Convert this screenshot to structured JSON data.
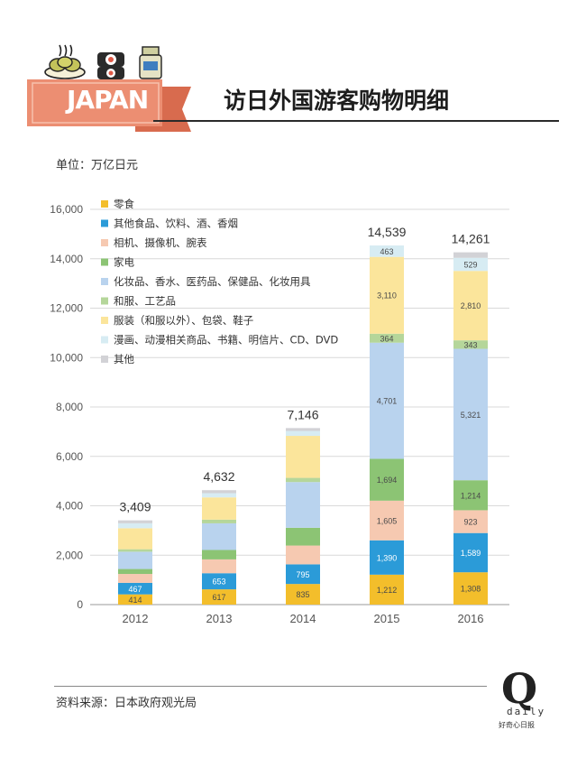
{
  "header": {
    "banner_text": "JAPAN",
    "title": "访日外国游客购物明细"
  },
  "unit_label": "单位：万亿日元",
  "source_label": "资料来源：日本政府观光局",
  "logo": {
    "letter": "Q",
    "word": "daily",
    "tagline": "好奇心日报"
  },
  "colors": {
    "banner": "#ec8e72",
    "grid": "#d9d9d9",
    "axis_text": "#555555"
  },
  "chart_data": {
    "type": "bar",
    "stacked": true,
    "categories": [
      "2012",
      "2013",
      "2014",
      "2015",
      "2016"
    ],
    "ylim": [
      0,
      16000
    ],
    "yticks": [
      "0",
      "2,000",
      "4,000",
      "6,000",
      "8,000",
      "10,000",
      "12,000",
      "14,000",
      "16,000"
    ],
    "ytick_values": [
      0,
      2000,
      4000,
      6000,
      8000,
      10000,
      12000,
      14000,
      16000
    ],
    "grid": true,
    "legend_position": "top-left",
    "totals": [
      3409,
      4632,
      7146,
      14539,
      14261
    ],
    "total_labels": [
      "3,409",
      "4,632",
      "7,146",
      "14,539",
      "14,261"
    ],
    "series": [
      {
        "name": "零食",
        "color": "#f3be2b",
        "values": [
          414,
          617,
          835,
          1212,
          1308
        ],
        "labels": [
          "414",
          "617",
          "835",
          "1,212",
          "1,308"
        ]
      },
      {
        "name": "其他食品、饮料、酒、香烟",
        "color": "#2b9bd8",
        "values": [
          467,
          653,
          795,
          1390,
          1589
        ],
        "labels": [
          "467",
          "653",
          "795",
          "1,390",
          "1,589"
        ]
      },
      {
        "name": "相机、摄像机、腕表",
        "color": "#f6c9b1",
        "values": [
          360,
          560,
          760,
          1605,
          923
        ],
        "labels": [
          "",
          "",
          "",
          "1,605",
          "923"
        ]
      },
      {
        "name": "家电",
        "color": "#8cc474",
        "values": [
          200,
          380,
          720,
          1694,
          1214
        ],
        "labels": [
          "",
          "",
          "",
          "1,694",
          "1,214"
        ]
      },
      {
        "name": "化妆品、香水、医药品、保健品、化妆用具",
        "color": "#b9d3ee",
        "values": [
          700,
          1080,
          1850,
          4701,
          5321
        ],
        "labels": [
          "",
          "",
          "",
          "4,701",
          "5,321"
        ]
      },
      {
        "name": "和服、工艺品",
        "color": "#b5d69a",
        "values": [
          100,
          150,
          170,
          364,
          343
        ],
        "labels": [
          "",
          "",
          "",
          "364",
          "343"
        ]
      },
      {
        "name": "服装（和服以外）、包袋、鞋子",
        "color": "#fbe59b",
        "values": [
          850,
          900,
          1700,
          3110,
          2810
        ],
        "labels": [
          "",
          "",
          "",
          "3,110",
          "2,810"
        ]
      },
      {
        "name": "漫画、动漫相关商品、书籍、明信片、CD、DVD",
        "color": "#d7ecf3",
        "values": [
          200,
          170,
          200,
          463,
          529
        ],
        "labels": [
          "",
          "",
          "",
          "463",
          "529"
        ]
      },
      {
        "name": "其他",
        "color": "#d2d2d6",
        "values": [
          118,
          122,
          116,
          0,
          224
        ],
        "labels": [
          "",
          "",
          "",
          "",
          ""
        ]
      }
    ]
  }
}
